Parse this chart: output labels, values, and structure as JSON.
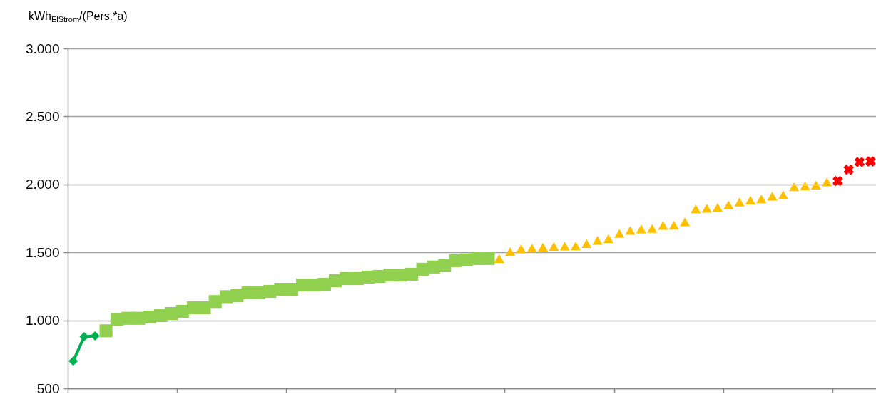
{
  "chart_data": {
    "type": "scatter",
    "ylabel": "kWh$_{ElStrom}$/(Pers.*a)",
    "categories": [
      null,
      null,
      null,
      null,
      null,
      null,
      null,
      null,
      null,
      null,
      null,
      null,
      null,
      null,
      null,
      null,
      null,
      null,
      null,
      null,
      null,
      null,
      null,
      null,
      null,
      null,
      null,
      null,
      null,
      null,
      null,
      null,
      null,
      null,
      null,
      null,
      null,
      null,
      null,
      null,
      null,
      null,
      null,
      null,
      null,
      null,
      null,
      null,
      null,
      null,
      null,
      null,
      null,
      null,
      null,
      null,
      null,
      null,
      null,
      null,
      null,
      null,
      null,
      null,
      null,
      null,
      null,
      null,
      null,
      null,
      null,
      null,
      null,
      null
    ],
    "ylim": [
      500,
      3000
    ],
    "yticks": [
      {
        "value": 500,
        "label": "500"
      },
      {
        "value": 1000,
        "label": "1.000"
      },
      {
        "value": 1500,
        "label": "1.500"
      },
      {
        "value": 2000,
        "label": "2.000"
      },
      {
        "value": 2500,
        "label": "2.500"
      },
      {
        "value": 3000,
        "label": "3.000"
      }
    ],
    "grid": "y",
    "tick_labels": "y",
    "series": [
      {
        "type": "line",
        "marker": "diamond",
        "color": "#00b050",
        "values": [
          700,
          880,
          885,
          null,
          null,
          null,
          null,
          null,
          null,
          null,
          null,
          null,
          null,
          null,
          null,
          null,
          null,
          null,
          null,
          null,
          null,
          null,
          null,
          null,
          null,
          null,
          null,
          null,
          null,
          null,
          null,
          null,
          null,
          null,
          null,
          null,
          null,
          null,
          null,
          null,
          null,
          null,
          null,
          null,
          null,
          null,
          null,
          null,
          null,
          null,
          null,
          null,
          null,
          null,
          null,
          null,
          null,
          null,
          null,
          null,
          null,
          null,
          null,
          null,
          null,
          null,
          null,
          null,
          null,
          null,
          null,
          null,
          null,
          null
        ]
      },
      {
        "marker": "square",
        "color": "#92d050",
        "values": [
          null,
          null,
          null,
          923,
          1008,
          1015,
          1015,
          1024,
          1035,
          1050,
          1066,
          1092,
          1092,
          1138,
          1174,
          1181,
          1202,
          1202,
          1213,
          1228,
          1228,
          1260,
          1260,
          1265,
          1291,
          1307,
          1307,
          1318,
          1323,
          1333,
          1333,
          1339,
          1376,
          1392,
          1402,
          1439,
          1445,
          1455,
          1455,
          null,
          null,
          null,
          null,
          null,
          null,
          null,
          null,
          null,
          null,
          null,
          null,
          null,
          null,
          null,
          null,
          null,
          null,
          null,
          null,
          null,
          null,
          null,
          null,
          null,
          null,
          null,
          null,
          null,
          null,
          null,
          null,
          null,
          null,
          null
        ]
      },
      {
        "marker": "triangle",
        "color": "#ffc000",
        "values": [
          null,
          null,
          null,
          null,
          null,
          null,
          null,
          null,
          null,
          null,
          null,
          null,
          null,
          null,
          null,
          null,
          null,
          null,
          null,
          null,
          null,
          null,
          null,
          null,
          null,
          null,
          null,
          null,
          null,
          null,
          null,
          null,
          null,
          null,
          null,
          null,
          null,
          null,
          null,
          1455,
          1505,
          1527,
          1532,
          1539,
          1543,
          1546,
          1548,
          1564,
          1588,
          1601,
          1639,
          1662,
          1672,
          1676,
          1698,
          1700,
          1725,
          1820,
          1824,
          1830,
          1849,
          1870,
          1884,
          1894,
          1913,
          1922,
          1982,
          1989,
          1994,
          2018,
          null,
          null,
          null,
          null
        ]
      },
      {
        "marker": "cross",
        "color": "#ff0000",
        "values": [
          null,
          null,
          null,
          null,
          null,
          null,
          null,
          null,
          null,
          null,
          null,
          null,
          null,
          null,
          null,
          null,
          null,
          null,
          null,
          null,
          null,
          null,
          null,
          null,
          null,
          null,
          null,
          null,
          null,
          null,
          null,
          null,
          null,
          null,
          null,
          null,
          null,
          null,
          null,
          null,
          null,
          null,
          null,
          null,
          null,
          null,
          null,
          null,
          null,
          null,
          null,
          null,
          null,
          null,
          null,
          null,
          null,
          null,
          null,
          null,
          null,
          null,
          null,
          null,
          null,
          null,
          null,
          null,
          null,
          null,
          2025,
          2108,
          2164,
          2169
        ]
      }
    ]
  }
}
